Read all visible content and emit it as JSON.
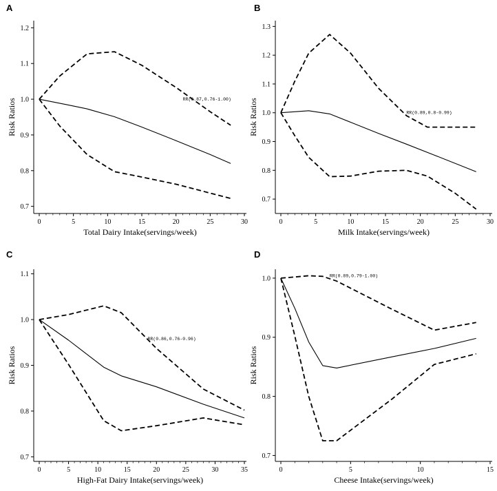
{
  "chart_data": [
    {
      "panel": "A",
      "type": "line",
      "xlabel": "Total Dairy Intake(servings/week)",
      "ylabel": "Risk Ratios",
      "xlim": [
        0,
        30
      ],
      "ylim": [
        0.68,
        1.22
      ],
      "xticks": [
        0,
        5,
        10,
        15,
        20,
        25,
        30
      ],
      "xtick_labels": [
        "0",
        "5",
        "10",
        "15",
        "20",
        "25",
        "30"
      ],
      "yticks": [
        0.7,
        0.8,
        0.9,
        1.0,
        1.1,
        1.2
      ],
      "ytick_labels": [
        "0.7",
        "0.8",
        "0.9",
        "1.0",
        "1.1",
        "1.2"
      ],
      "annotation": {
        "text": "RR(0.87,0.76-1.00)",
        "x": 21,
        "y": 1.0
      },
      "series": [
        {
          "name": "estimate",
          "style": "solid",
          "x": [
            0,
            4,
            7,
            11,
            15,
            20,
            25,
            28
          ],
          "y": [
            1.0,
            0.985,
            0.973,
            0.951,
            0.922,
            0.884,
            0.845,
            0.82
          ]
        },
        {
          "name": "upper",
          "style": "dashed",
          "x": [
            0,
            3,
            7,
            11,
            15,
            20,
            25,
            28
          ],
          "y": [
            1.0,
            1.065,
            1.127,
            1.133,
            1.095,
            1.033,
            0.965,
            0.927
          ]
        },
        {
          "name": "lower",
          "style": "dashed",
          "x": [
            0,
            3,
            7,
            11,
            15,
            20,
            25,
            28
          ],
          "y": [
            1.0,
            0.925,
            0.845,
            0.797,
            0.782,
            0.762,
            0.737,
            0.722
          ]
        }
      ]
    },
    {
      "panel": "B",
      "type": "line",
      "xlabel": "Milk Intake(servings/week)",
      "ylabel": "Risk Ratios",
      "xlim": [
        0,
        30
      ],
      "ylim": [
        0.65,
        1.32
      ],
      "xticks": [
        0,
        5,
        10,
        15,
        20,
        25,
        30
      ],
      "xtick_labels": [
        "0",
        "5",
        "10",
        "15",
        "20",
        "25",
        "30"
      ],
      "yticks": [
        0.7,
        0.8,
        0.9,
        1.0,
        1.1,
        1.2,
        1.3
      ],
      "ytick_labels": [
        "0.7",
        "0.8",
        "0.9",
        "1.0",
        "1.1",
        "1.2",
        "1.3"
      ],
      "annotation": {
        "text": "RR(0.89,0.8-0.99)",
        "x": 18,
        "y": 1.0
      },
      "series": [
        {
          "name": "estimate",
          "style": "solid",
          "x": [
            0,
            4,
            7,
            10,
            14,
            18,
            22,
            28
          ],
          "y": [
            1.0,
            1.007,
            0.996,
            0.967,
            0.928,
            0.891,
            0.853,
            0.795
          ]
        },
        {
          "name": "upper",
          "style": "dashed",
          "x": [
            0,
            2,
            4,
            7,
            10,
            14,
            18,
            21,
            28
          ],
          "y": [
            1.0,
            1.11,
            1.207,
            1.272,
            1.207,
            1.085,
            0.99,
            0.95,
            0.95
          ]
        },
        {
          "name": "lower",
          "style": "dashed",
          "x": [
            0,
            2,
            4,
            7,
            10,
            14,
            18,
            21,
            25,
            28
          ],
          "y": [
            1.0,
            0.92,
            0.845,
            0.778,
            0.78,
            0.797,
            0.8,
            0.78,
            0.72,
            0.665
          ]
        }
      ]
    },
    {
      "panel": "C",
      "type": "line",
      "xlabel": "High-Fat Dairy Intake(servings/week)",
      "ylabel": "Risk Ratios",
      "xlim": [
        0,
        35
      ],
      "ylim": [
        0.69,
        1.11
      ],
      "xticks": [
        0,
        5,
        10,
        15,
        20,
        25,
        30,
        35
      ],
      "xtick_labels": [
        "0",
        "5",
        "10",
        "15",
        "20",
        "25",
        "30",
        "35"
      ],
      "yticks": [
        0.7,
        0.8,
        0.9,
        1.0,
        1.1
      ],
      "ytick_labels": [
        "0.7",
        "0.8",
        "0.9",
        "1.0",
        "1.1"
      ],
      "annotation": {
        "text": "RR(0.86,0.76-0.96)",
        "x": 18.5,
        "y": 0.958
      },
      "series": [
        {
          "name": "estimate",
          "style": "solid",
          "x": [
            0,
            5,
            11,
            14,
            20,
            28,
            35
          ],
          "y": [
            1.0,
            0.955,
            0.896,
            0.877,
            0.853,
            0.815,
            0.785
          ]
        },
        {
          "name": "upper",
          "style": "dashed",
          "x": [
            0,
            5,
            11,
            14,
            20,
            28,
            35
          ],
          "y": [
            1.0,
            1.011,
            1.03,
            1.015,
            0.937,
            0.848,
            0.802
          ]
        },
        {
          "name": "lower",
          "style": "dashed",
          "x": [
            0,
            5,
            11,
            14,
            20,
            28,
            35
          ],
          "y": [
            1.0,
            0.902,
            0.779,
            0.757,
            0.768,
            0.785,
            0.77
          ]
        }
      ]
    },
    {
      "panel": "D",
      "type": "line",
      "xlabel": "Cheese Intake(servings/week)",
      "ylabel": "Risk Ratios",
      "xlim": [
        0,
        15
      ],
      "ylim": [
        0.69,
        1.015
      ],
      "xticks": [
        0,
        5,
        10,
        15
      ],
      "xtick_labels": [
        "0",
        "5",
        "10",
        "15"
      ],
      "yticks": [
        0.7,
        0.8,
        0.9,
        1.0
      ],
      "ytick_labels": [
        "0.7",
        "0.8",
        "0.9",
        "1.0"
      ],
      "annotation": {
        "text": "RR(0.89,0.79-1.00)",
        "x": 3.5,
        "y": 1.004
      },
      "series": [
        {
          "name": "estimate",
          "style": "solid",
          "x": [
            0,
            1,
            2,
            3,
            4,
            8,
            11,
            14
          ],
          "y": [
            1.0,
            0.949,
            0.892,
            0.852,
            0.848,
            0.867,
            0.881,
            0.898
          ]
        },
        {
          "name": "upper",
          "style": "dashed",
          "x": [
            0,
            1,
            2,
            3,
            4,
            8,
            11,
            14
          ],
          "y": [
            1.0,
            1.002,
            1.004,
            1.003,
            0.995,
            0.947,
            0.912,
            0.925
          ]
        },
        {
          "name": "lower",
          "style": "dashed",
          "x": [
            0,
            1,
            2,
            3,
            4,
            8,
            11,
            14
          ],
          "y": [
            1.0,
            0.902,
            0.8,
            0.725,
            0.725,
            0.796,
            0.854,
            0.872
          ]
        }
      ]
    }
  ]
}
